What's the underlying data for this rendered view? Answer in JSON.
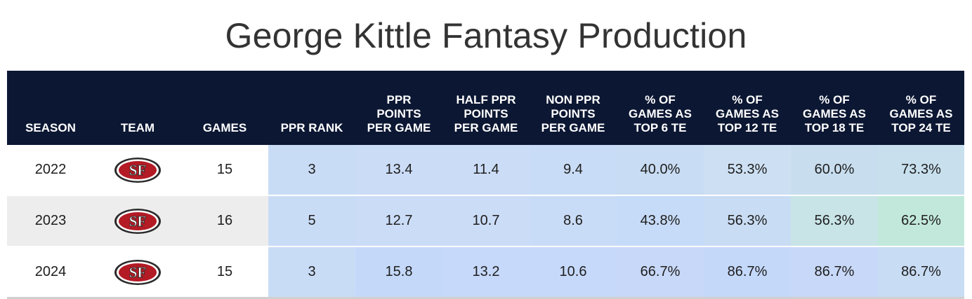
{
  "title": "George Kittle Fantasy Production",
  "columns": [
    [
      "SEASON"
    ],
    [
      "TEAM"
    ],
    [
      "GAMES"
    ],
    [
      "PPR RANK"
    ],
    [
      "PPR",
      "POINTS",
      "PER GAME"
    ],
    [
      "HALF PPR",
      "POINTS",
      "PER GAME"
    ],
    [
      "NON PPR",
      "POINTS",
      "PER GAME"
    ],
    [
      "% OF",
      "GAMES AS",
      "TOP 6 TE"
    ],
    [
      "% OF",
      "GAMES AS",
      "TOP 12 TE"
    ],
    [
      "% OF",
      "GAMES AS",
      "TOP 18 TE"
    ],
    [
      "% OF",
      "GAMES AS",
      "TOP 24 TE"
    ]
  ],
  "team_logo": {
    "icon": "49ers-sf-logo-icon",
    "text": "SF"
  },
  "rows": [
    {
      "season": "2022",
      "games": "15",
      "ppr_rank": "3",
      "ppr_ppg": "13.4",
      "half_ppr_ppg": "11.4",
      "non_ppr_ppg": "9.4",
      "top6": "40.0%",
      "top12": "53.3%",
      "top18": "60.0%",
      "top24": "73.3%"
    },
    {
      "season": "2023",
      "games": "16",
      "ppr_rank": "5",
      "ppr_ppg": "12.7",
      "half_ppr_ppg": "10.7",
      "non_ppr_ppg": "8.6",
      "top6": "43.8%",
      "top12": "56.3%",
      "top18": "56.3%",
      "top24": "62.5%"
    },
    {
      "season": "2024",
      "games": "15",
      "ppr_rank": "3",
      "ppr_ppg": "15.8",
      "half_ppr_ppg": "13.2",
      "non_ppr_ppg": "10.6",
      "top6": "66.7%",
      "top12": "86.7%",
      "top18": "86.7%",
      "top24": "86.7%"
    }
  ],
  "cell_colors": [
    [
      "#c9dcf6",
      "#cbdcf7",
      "#cbdcf7",
      "#c9dcf7",
      "#c8dcf3",
      "#cde0f3",
      "#c8deef",
      "#c8e0ee"
    ],
    [
      "#c9dcf6",
      "#cbdcf7",
      "#cbdcf7",
      "#c9dcf7",
      "#c6dbf7",
      "#c8dcf3",
      "#c8e4e7",
      "#c2e8dc"
    ],
    [
      "#c9dcf6",
      "#c4d9fa",
      "#c6d9fa",
      "#c6d9fa",
      "#c8d8f8",
      "#c4d8fa",
      "#c8d8f8",
      "#c8dcf4"
    ]
  ]
}
